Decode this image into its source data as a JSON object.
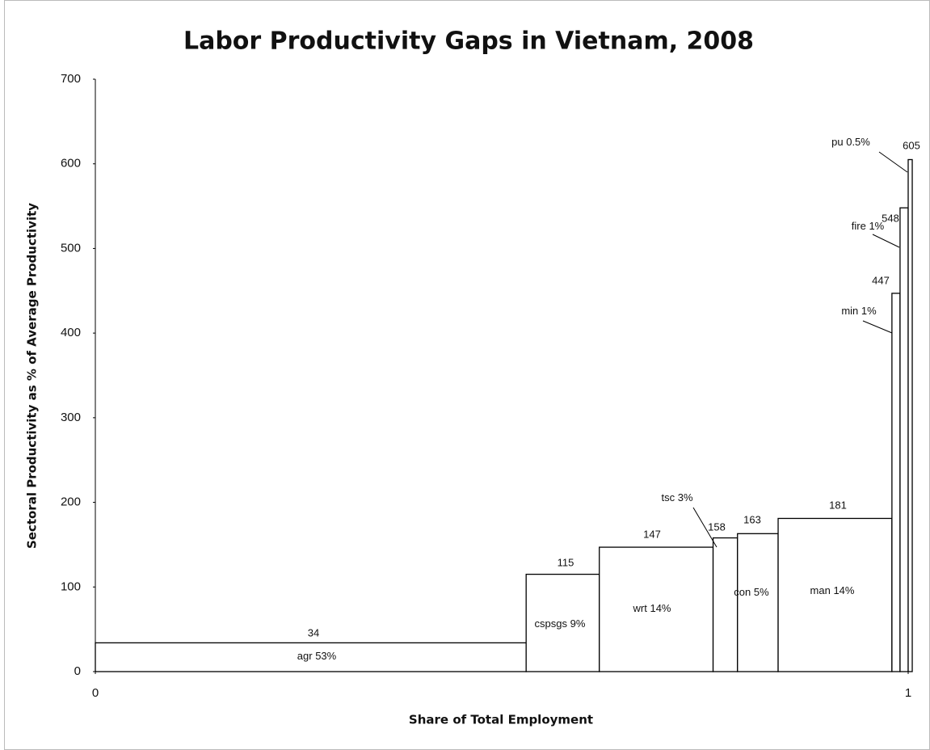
{
  "chart_data": {
    "type": "variable-width-bar",
    "title": "Labor Productivity Gaps in Vietnam, 2008",
    "x_label": "Share of Total Employment",
    "y_label": "Sectoral Productivity as % of Average Productivity",
    "categories": [
      "agr",
      "cspsgs",
      "wrt",
      "tsc",
      "con",
      "man",
      "min",
      "fire",
      "pu"
    ],
    "widths": [
      0.53,
      0.09,
      0.14,
      0.03,
      0.05,
      0.14,
      0.01,
      0.01,
      0.005
    ],
    "width_labels": [
      "53%",
      "9%",
      "14%",
      "3%",
      "5%",
      "14%",
      "1%",
      "1%",
      "0.5%"
    ],
    "values": [
      34,
      115,
      147,
      158,
      163,
      181,
      447,
      548,
      605
    ],
    "color": "#ffffff",
    "edge_color": "#000000",
    "xlim": [
      0,
      1
    ],
    "xticks": [
      0,
      1
    ],
    "ylim": [
      0,
      700
    ],
    "yticks": [
      0,
      100,
      200,
      300,
      400,
      500,
      600,
      700
    ]
  }
}
